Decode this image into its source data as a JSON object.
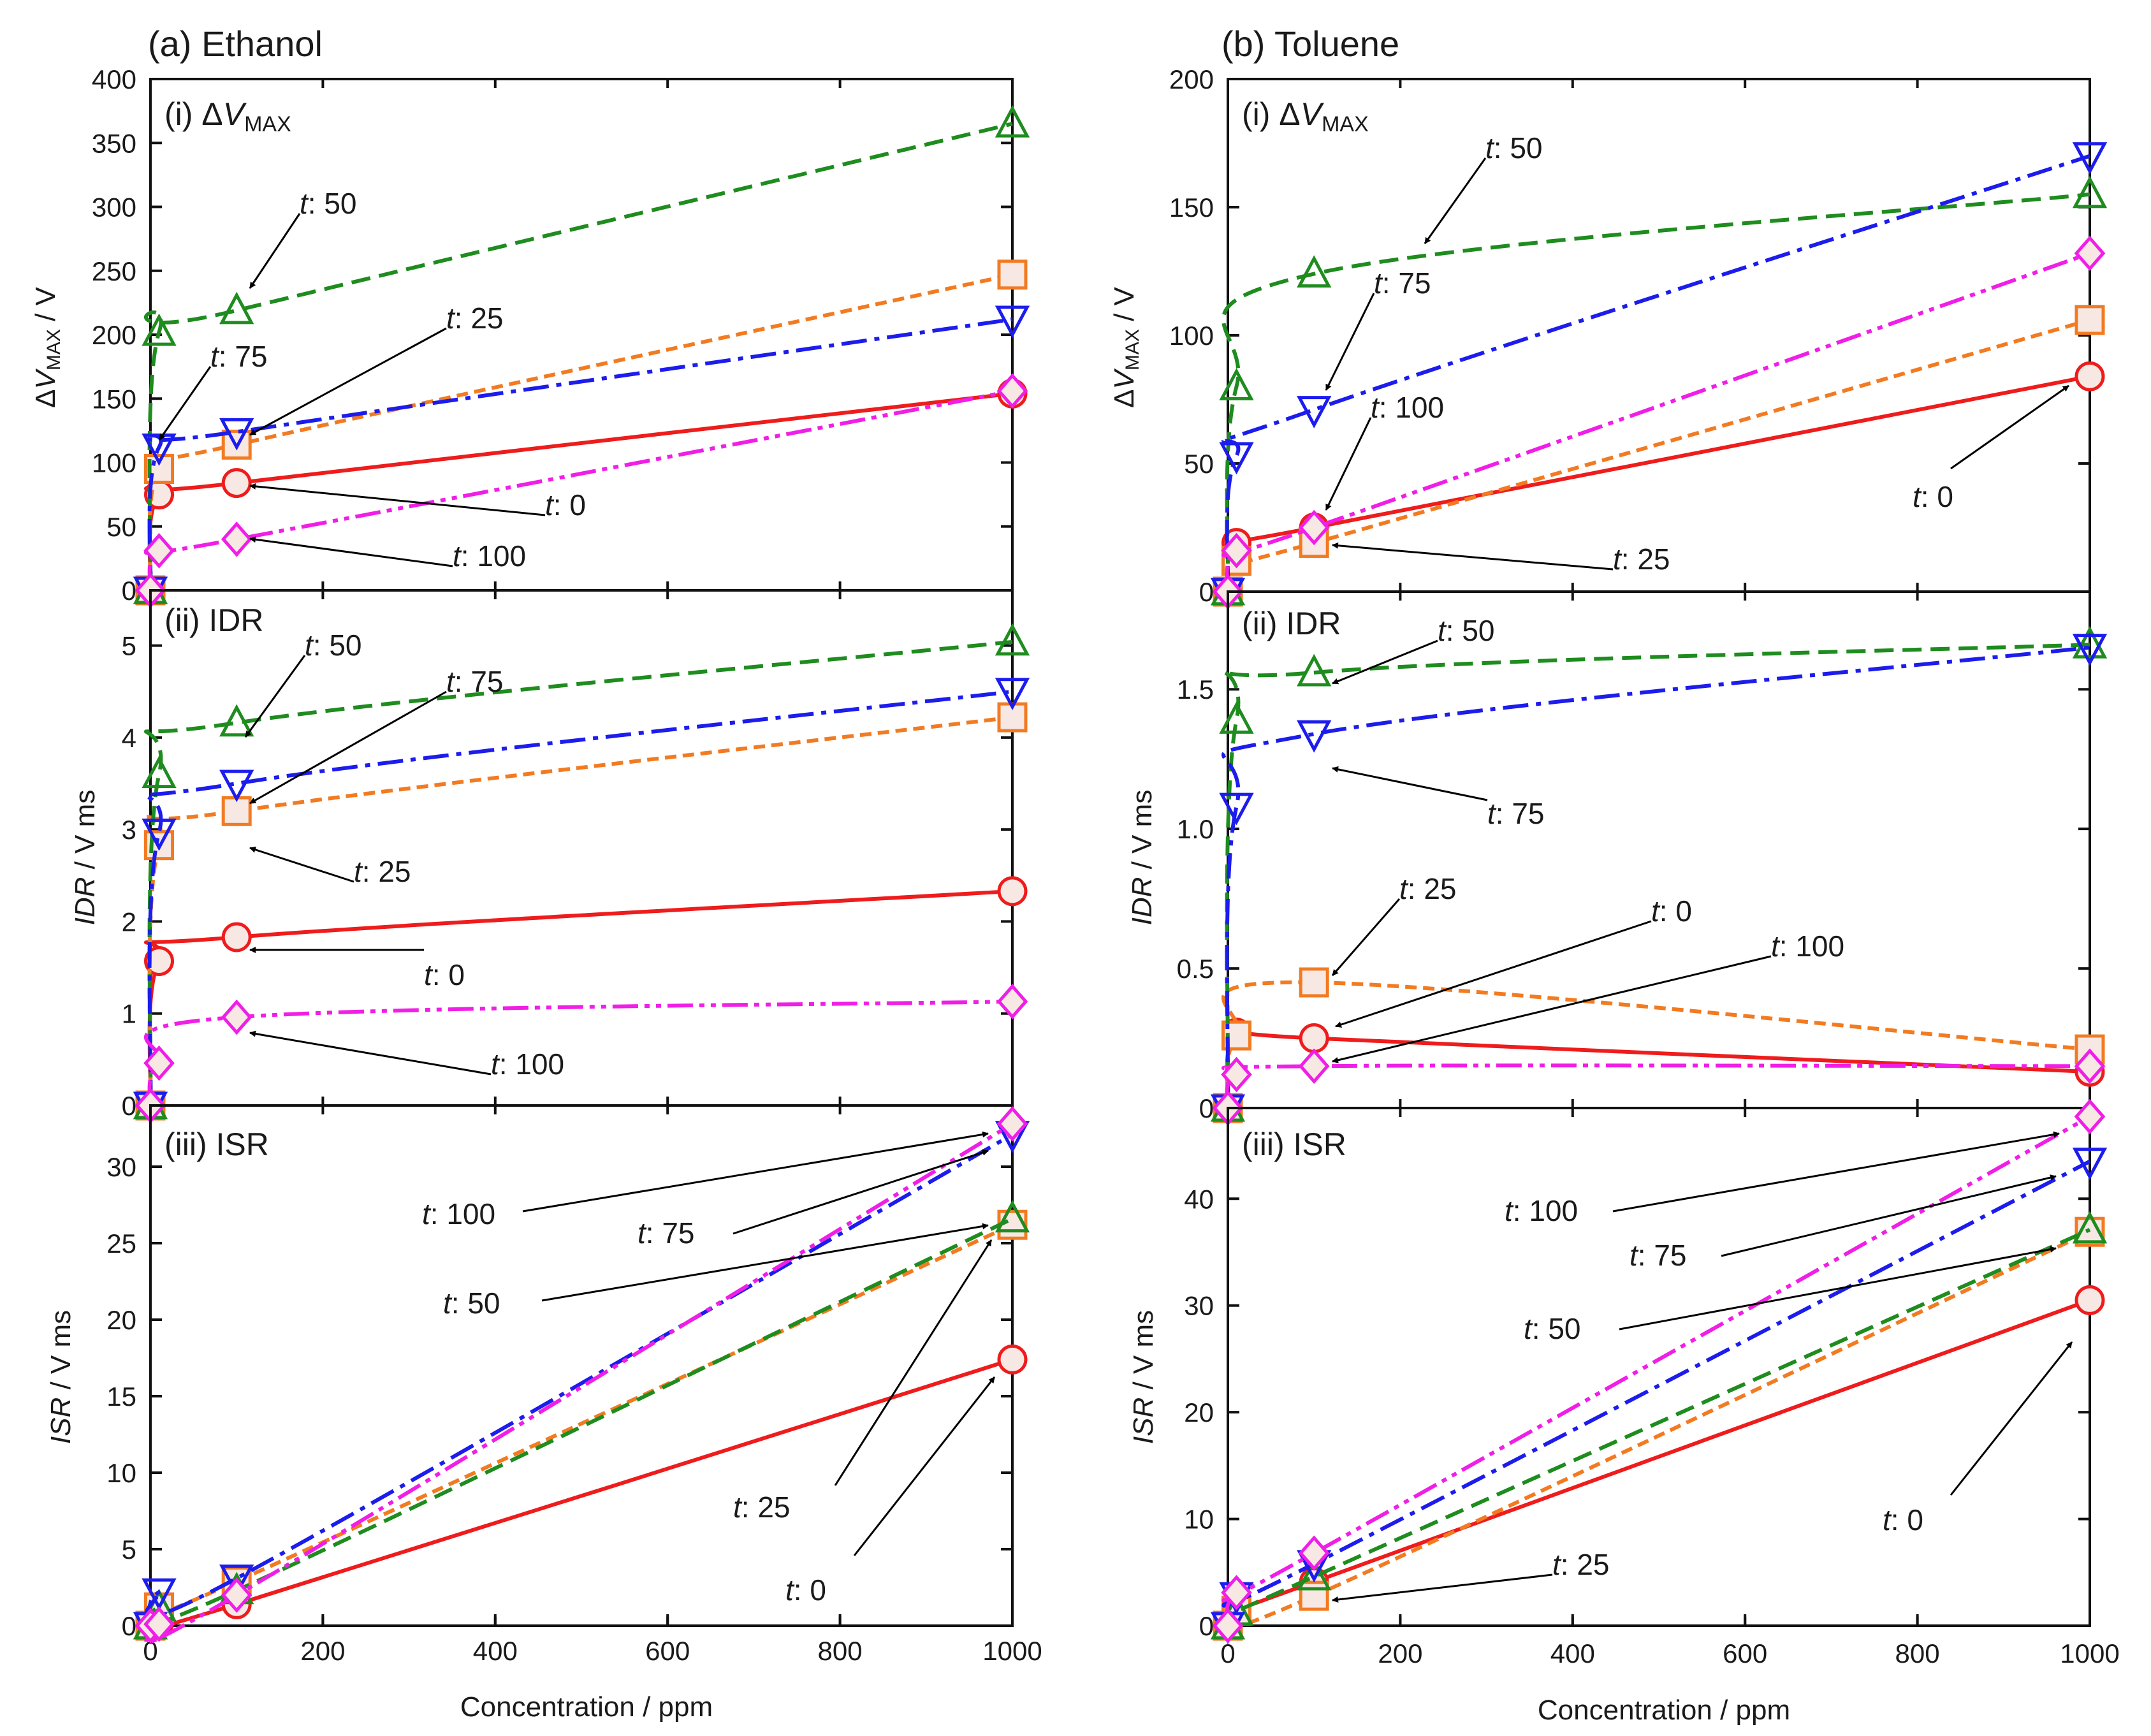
{
  "figure": {
    "series_styles": {
      "t: 0": {
        "color": "#ee1c1c",
        "marker": "circle",
        "dash": "solid"
      },
      "t: 25": {
        "color": "#f27b22",
        "marker": "square",
        "dash": "short-dash"
      },
      "t: 50": {
        "color": "#1e8c1e",
        "marker": "triangle-up",
        "dash": "dash"
      },
      "t: 75": {
        "color": "#1c1ced",
        "marker": "triangle-down",
        "dash": "dash-dot"
      },
      "t: 100": {
        "color": "#f01ee6",
        "marker": "diamond",
        "dash": "dash-dot-dot"
      }
    },
    "marker_fill": "#f7e8e4"
  },
  "chart_data": [
    {
      "id": "a",
      "title": "(a) Ethanol",
      "xlabel": "Concentration / ppm",
      "xlim": [
        0,
        1000
      ],
      "xticks": [
        "0",
        "200",
        "400",
        "600",
        "800",
        "1000"
      ],
      "subplots": [
        {
          "id": "a-i",
          "type": "line",
          "label_prefix": "(i) Δ",
          "label_var": "V",
          "label_sub": "MAX",
          "ylabel": "ΔVMAX / V",
          "ylim": [
            0,
            400
          ],
          "yticks": [
            "0",
            "50",
            "100",
            "150",
            "200",
            "250",
            "300",
            "350",
            "400"
          ],
          "x": [
            0,
            10,
            100,
            1000
          ],
          "series": [
            {
              "name": "t: 0",
              "values": [
                0,
                75,
                84,
                154
              ]
            },
            {
              "name": "t: 25",
              "values": [
                0,
                95,
                114,
                247
              ]
            },
            {
              "name": "t: 50",
              "values": [
                0,
                202,
                219,
                365
              ]
            },
            {
              "name": "t: 75",
              "values": [
                0,
                112,
                124,
                212
              ]
            },
            {
              "name": "t: 100",
              "values": [
                0,
                31,
                40,
                156
              ]
            }
          ],
          "annotations": [
            {
              "text": "t: 50",
              "prefix": "t",
              "suffix": ": 50"
            },
            {
              "text": "t: 75",
              "prefix": "t",
              "suffix": ": 75"
            },
            {
              "text": "t: 25",
              "prefix": "t",
              "suffix": ": 25"
            },
            {
              "text": "t: 0",
              "prefix": "t",
              "suffix": ": 0"
            },
            {
              "text": "t: 100",
              "prefix": "t",
              "suffix": ": 100"
            }
          ]
        },
        {
          "id": "a-ii",
          "type": "line",
          "label_prefix": "(ii) IDR",
          "ylabel": "IDR / V ms",
          "ylim": [
            0,
            5.6
          ],
          "yticks": [
            "0",
            "1",
            "2",
            "3",
            "4",
            "5"
          ],
          "x": [
            0,
            10,
            100,
            1000
          ],
          "series": [
            {
              "name": "t: 0",
              "values": [
                0,
                1.57,
                1.83,
                2.33
              ]
            },
            {
              "name": "t: 25",
              "values": [
                0,
                2.83,
                3.2,
                4.22
              ]
            },
            {
              "name": "t: 50",
              "values": [
                0,
                3.6,
                4.16,
                5.04
              ]
            },
            {
              "name": "t: 75",
              "values": [
                0,
                2.97,
                3.5,
                4.5
              ]
            },
            {
              "name": "t: 100",
              "values": [
                0,
                0.46,
                0.96,
                1.13
              ]
            }
          ],
          "annotations": [
            {
              "text": "t: 50",
              "prefix": "t",
              "suffix": ": 50"
            },
            {
              "text": "t: 75",
              "prefix": "t",
              "suffix": ": 75"
            },
            {
              "text": "t: 25",
              "prefix": "t",
              "suffix": ": 25"
            },
            {
              "text": "t: 0",
              "prefix": "t",
              "suffix": ": 0"
            },
            {
              "text": "t: 100",
              "prefix": "t",
              "suffix": ": 100"
            }
          ]
        },
        {
          "id": "a-iii",
          "type": "line",
          "label_prefix": "(iii) ISR",
          "ylabel": "ISR / V ms",
          "ylim": [
            0,
            34
          ],
          "yticks": [
            "0",
            "5",
            "10",
            "15",
            "20",
            "25",
            "30"
          ],
          "x": [
            0,
            10,
            100,
            1000
          ],
          "series": [
            {
              "name": "t: 0",
              "values": [
                0,
                0.2,
                1.4,
                17.4
              ]
            },
            {
              "name": "t: 25",
              "values": [
                0,
                1.2,
                2.9,
                26.2
              ]
            },
            {
              "name": "t: 50",
              "values": [
                0,
                1.2,
                2.3,
                26.6
              ]
            },
            {
              "name": "t: 75",
              "values": [
                0,
                2.2,
                3.1,
                32.1
              ]
            },
            {
              "name": "t: 100",
              "values": [
                0,
                0.1,
                2.0,
                32.8
              ]
            }
          ],
          "annotations": [
            {
              "text": "t: 100",
              "prefix": "t",
              "suffix": ": 100"
            },
            {
              "text": "t: 75",
              "prefix": "t",
              "suffix": ": 75"
            },
            {
              "text": "t: 50",
              "prefix": "t",
              "suffix": ": 50"
            },
            {
              "text": "t: 25",
              "prefix": "t",
              "suffix": ": 25"
            },
            {
              "text": "t: 0",
              "prefix": "t",
              "suffix": ": 0"
            }
          ]
        }
      ]
    },
    {
      "id": "b",
      "title": "(b) Toluene",
      "xlabel": "Concentration / ppm",
      "xlim": [
        0,
        1000
      ],
      "xticks": [
        "0",
        "200",
        "400",
        "600",
        "800",
        "1000"
      ],
      "subplots": [
        {
          "id": "b-i",
          "type": "line",
          "label_prefix": "(i) Δ",
          "label_var": "V",
          "label_sub": "MAX",
          "ylabel": "ΔVMAX / V",
          "ylim": [
            0,
            200
          ],
          "yticks": [
            "0",
            "50",
            "100",
            "150",
            "200"
          ],
          "x": [
            0,
            10,
            100,
            1000
          ],
          "series": [
            {
              "name": "t: 0",
              "values": [
                0,
                19,
                25,
                84
              ]
            },
            {
              "name": "t: 25",
              "values": [
                0,
                12,
                19,
                106
              ]
            },
            {
              "name": "t: 50",
              "values": [
                0,
                80,
                124,
                155
              ]
            },
            {
              "name": "t: 75",
              "values": [
                0,
                53,
                71,
                170
              ]
            },
            {
              "name": "t: 100",
              "values": [
                0,
                16,
                25,
                132
              ]
            }
          ],
          "annotations": [
            {
              "text": "t: 50",
              "prefix": "t",
              "suffix": ": 50"
            },
            {
              "text": "t: 75",
              "prefix": "t",
              "suffix": ": 75"
            },
            {
              "text": "t: 100",
              "prefix": "t",
              "suffix": ": 100"
            },
            {
              "text": "t: 0",
              "prefix": "t",
              "suffix": ": 0"
            },
            {
              "text": "t: 25",
              "prefix": "t",
              "suffix": ": 25"
            }
          ]
        },
        {
          "id": "b-ii",
          "type": "line",
          "label_prefix": "(ii) IDR",
          "ylabel": "IDR / V ms",
          "ylim": [
            0,
            1.85
          ],
          "yticks": [
            "0",
            "0.5",
            "1.0",
            "1.5"
          ],
          "x": [
            0,
            10,
            100,
            1000
          ],
          "series": [
            {
              "name": "t: 0",
              "values": [
                0,
                0.27,
                0.25,
                0.13
              ]
            },
            {
              "name": "t: 25",
              "values": [
                0,
                0.26,
                0.45,
                0.21
              ]
            },
            {
              "name": "t: 50",
              "values": [
                0,
                1.39,
                1.56,
                1.66
              ]
            },
            {
              "name": "t: 75",
              "values": [
                0,
                1.08,
                1.34,
                1.65
              ]
            },
            {
              "name": "t: 100",
              "values": [
                0,
                0.12,
                0.15,
                0.15
              ]
            }
          ],
          "annotations": [
            {
              "text": "t: 50",
              "prefix": "t",
              "suffix": ": 50"
            },
            {
              "text": "t: 75",
              "prefix": "t",
              "suffix": ": 75"
            },
            {
              "text": "t: 25",
              "prefix": "t",
              "suffix": ": 25"
            },
            {
              "text": "t: 0",
              "prefix": "t",
              "suffix": ": 0"
            },
            {
              "text": "t: 100",
              "prefix": "t",
              "suffix": ": 100"
            }
          ]
        },
        {
          "id": "b-iii",
          "type": "line",
          "label_prefix": "(iii) ISR",
          "ylabel": "ISR / V ms",
          "ylim": [
            0,
            48.5
          ],
          "yticks": [
            "0",
            "10",
            "20",
            "30",
            "40"
          ],
          "x": [
            0,
            10,
            100,
            1000
          ],
          "series": [
            {
              "name": "t: 0",
              "values": [
                0,
                1.4,
                4.1,
                30.5
              ]
            },
            {
              "name": "t: 25",
              "values": [
                0,
                1.4,
                2.8,
                36.9
              ]
            },
            {
              "name": "t: 50",
              "values": [
                0,
                1.3,
                4.6,
                37.1
              ]
            },
            {
              "name": "t: 75",
              "values": [
                0,
                2.8,
                5.8,
                43.5
              ]
            },
            {
              "name": "t: 100",
              "values": [
                0,
                3.1,
                6.8,
                47.7
              ]
            }
          ],
          "annotations": [
            {
              "text": "t: 100",
              "prefix": "t",
              "suffix": ": 100"
            },
            {
              "text": "t: 75",
              "prefix": "t",
              "suffix": ": 75"
            },
            {
              "text": "t: 50",
              "prefix": "t",
              "suffix": ": 50"
            },
            {
              "text": "t: 25",
              "prefix": "t",
              "suffix": ": 25"
            },
            {
              "text": "t: 0",
              "prefix": "t",
              "suffix": ": 0"
            }
          ]
        }
      ]
    }
  ]
}
